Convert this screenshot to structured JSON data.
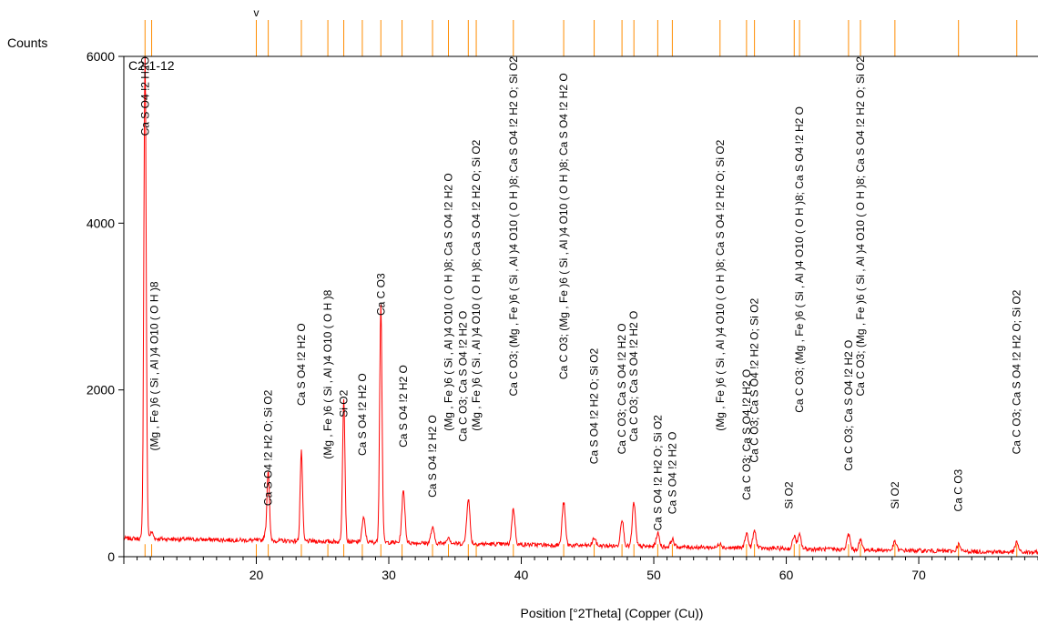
{
  "chart_data": {
    "type": "line",
    "title": "",
    "sample_label": "C2-1-12",
    "ylabel": "Counts",
    "xlabel": "Position [°2Theta] (Copper (Cu))",
    "xlim": [
      10,
      79
    ],
    "ylim": [
      0,
      6000
    ],
    "x_ticks": [
      20,
      30,
      40,
      50,
      60,
      70
    ],
    "x_tick_labels": [
      "20",
      "30",
      "40",
      "50",
      "60",
      "70"
    ],
    "y_ticks": [
      0,
      2000,
      4000,
      6000
    ],
    "y_tick_labels": [
      "0",
      "2000",
      "4000",
      "6000"
    ],
    "grid": false,
    "colors": {
      "pattern": "#ff0000",
      "reference_sticks": "#ff8c00",
      "axes": "#000000"
    },
    "series": [
      {
        "peaks": [
          {
            "x": 11.6,
            "y": 6000
          },
          {
            "x": 12.1,
            "y": 300
          },
          {
            "x": 20.7,
            "y": 270
          },
          {
            "x": 20.9,
            "y": 1020
          },
          {
            "x": 23.4,
            "y": 1250
          },
          {
            "x": 26.6,
            "y": 1900
          },
          {
            "x": 28.1,
            "y": 480
          },
          {
            "x": 29.4,
            "y": 3000
          },
          {
            "x": 31.1,
            "y": 770
          },
          {
            "x": 33.3,
            "y": 350
          },
          {
            "x": 34.5,
            "y": 230
          },
          {
            "x": 36.0,
            "y": 680
          },
          {
            "x": 39.4,
            "y": 550
          },
          {
            "x": 43.2,
            "y": 630
          },
          {
            "x": 45.5,
            "y": 210
          },
          {
            "x": 47.6,
            "y": 460
          },
          {
            "x": 48.5,
            "y": 620
          },
          {
            "x": 50.3,
            "y": 270
          },
          {
            "x": 51.4,
            "y": 190
          },
          {
            "x": 55.0,
            "y": 140
          },
          {
            "x": 57.0,
            "y": 270
          },
          {
            "x": 57.6,
            "y": 300
          },
          {
            "x": 60.6,
            "y": 230
          },
          {
            "x": 61.0,
            "y": 240
          },
          {
            "x": 64.7,
            "y": 250
          },
          {
            "x": 65.6,
            "y": 170
          },
          {
            "x": 68.2,
            "y": 150
          },
          {
            "x": 73.0,
            "y": 110
          },
          {
            "x": 77.4,
            "y": 140
          }
        ],
        "background_start": 220,
        "background_end": 50
      }
    ],
    "reference_lines_top": [
      11.6,
      12.1,
      20.0,
      20.9,
      23.4,
      25.4,
      26.6,
      28.0,
      29.4,
      31.0,
      33.3,
      34.5,
      36.0,
      36.6,
      39.4,
      43.2,
      45.5,
      47.6,
      48.5,
      50.3,
      51.4,
      55.0,
      57.0,
      57.6,
      60.6,
      61.0,
      64.7,
      65.6,
      68.2,
      73.0,
      77.4
    ],
    "reference_top_marker": "v",
    "reference_top_marker_x": 20.0,
    "annotations": [
      {
        "x": 11.6,
        "y_top": 6000,
        "text": "Ca S O4 !2 H2O"
      },
      {
        "x": 12.3,
        "y_top": 3300,
        "text": "(Mg , Fe )6 ( Si , Al )4 O10 ( O H )8"
      },
      {
        "x": 20.9,
        "y_top": 2000,
        "text": "Ca S O4 !2 H2 O; Si O2"
      },
      {
        "x": 23.4,
        "y_top": 2800,
        "text": "Ca S O4 !2 H2 O"
      },
      {
        "x": 25.4,
        "y_top": 3200,
        "text": "(Mg , Fe )6 ( Si , Al )4 O10 ( O H )8"
      },
      {
        "x": 26.6,
        "y_top": 2000,
        "text": "Si O2"
      },
      {
        "x": 28.0,
        "y_top": 2200,
        "text": "Ca S O4 !2 H2 O"
      },
      {
        "x": 29.4,
        "y_top": 3400,
        "text": "Ca C O3"
      },
      {
        "x": 31.1,
        "y_top": 2300,
        "text": "Ca S O4 !2 H2 O"
      },
      {
        "x": 33.3,
        "y_top": 1700,
        "text": "Ca S O4 !2 H2 O"
      },
      {
        "x": 34.5,
        "y_top": 4600,
        "text": "(Mg , Fe )6 ( Si , Al )4 O10 ( O H )8; Ca S O4 !2 H2 O"
      },
      {
        "x": 35.6,
        "y_top": 2950,
        "text": "Ca C O3; Ca S O4 !2 H2 O"
      },
      {
        "x": 36.6,
        "y_top": 5000,
        "text": "(Mg , Fe )6 ( Si , Al )4 O10 ( O H )8; Ca S O4 !2 H2 O; Si O2"
      },
      {
        "x": 39.4,
        "y_top": 6000,
        "text": "Ca C O3; (Mg , Fe )6 ( Si , Al )4 O10 ( O H )8; Ca S O4 !2 H2 O; Si O2"
      },
      {
        "x": 43.2,
        "y_top": 5800,
        "text": "Ca C O3; (Mg , Fe )6 ( Si , Al )4 O10 ( O H )8; Ca S O4 !2 H2 O"
      },
      {
        "x": 45.5,
        "y_top": 2500,
        "text": "Ca S O4 !2 H2 O; Si O2"
      },
      {
        "x": 47.6,
        "y_top": 2800,
        "text": "Ca C O3; Ca S O4 !2 H2 O"
      },
      {
        "x": 48.5,
        "y_top": 2950,
        "text": "Ca C O3; Ca S O4 !2 H2 O"
      },
      {
        "x": 50.3,
        "y_top": 1700,
        "text": "Ca S O4 !2 H2 O; Si O2"
      },
      {
        "x": 51.4,
        "y_top": 1500,
        "text": "Ca S O4 !2 H2 O"
      },
      {
        "x": 55.0,
        "y_top": 5000,
        "text": "(Mg , Fe )6 ( Si , Al )4 O10 ( O H )8; Ca S O4 !2 H2 O; Si O2"
      },
      {
        "x": 57.0,
        "y_top": 2250,
        "text": "Ca C O3; Ca S O4 !2 H2 O"
      },
      {
        "x": 57.6,
        "y_top": 3100,
        "text": "Ca C O3; Ca S O4 !2 H2 O; Si O2"
      },
      {
        "x": 60.2,
        "y_top": 900,
        "text": "Si O2"
      },
      {
        "x": 61.0,
        "y_top": 5400,
        "text": "Ca C O3; (Mg , Fe )6 ( Si , Al )4 O10 ( O H )8; Ca S O4 !2 H2 O"
      },
      {
        "x": 64.7,
        "y_top": 2600,
        "text": "Ca C O3; Ca S O4 !2 H2 O"
      },
      {
        "x": 65.6,
        "y_top": 6000,
        "text": "Ca C O3; (Mg , Fe )6 ( Si , Al )4 O10 ( O H )8; Ca S O4 !2 H2 O; Si O2"
      },
      {
        "x": 68.2,
        "y_top": 900,
        "text": "Si O2"
      },
      {
        "x": 73.0,
        "y_top": 1050,
        "text": "Ca C O3"
      },
      {
        "x": 77.4,
        "y_top": 3200,
        "text": "Ca C O3; Ca S O4 !2 H2 O; Si O2"
      }
    ]
  }
}
